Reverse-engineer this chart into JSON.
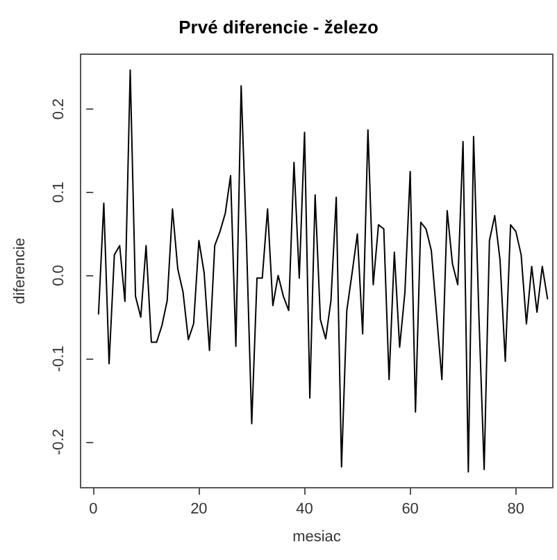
{
  "chart_data": {
    "type": "line",
    "title": "Prvé diferencie - železo",
    "xlabel": "mesiac",
    "ylabel": "diferencie",
    "x": [
      1,
      2,
      3,
      4,
      5,
      6,
      7,
      8,
      9,
      10,
      11,
      12,
      13,
      14,
      15,
      16,
      17,
      18,
      19,
      20,
      21,
      22,
      23,
      24,
      25,
      26,
      27,
      28,
      29,
      30,
      31,
      32,
      33,
      34,
      35,
      36,
      37,
      38,
      39,
      40,
      41,
      42,
      43,
      44,
      45,
      46,
      47,
      48,
      49,
      50,
      51,
      52,
      53,
      54,
      55,
      56,
      57,
      58,
      59,
      60,
      61,
      62,
      63,
      64,
      65,
      66,
      67,
      68,
      69,
      70,
      71,
      72,
      73,
      74,
      75,
      76,
      77,
      78,
      79,
      80,
      81,
      82,
      83,
      84,
      85,
      86
    ],
    "series": [
      {
        "color": "#000000",
        "values": [
          -0.046,
          0.087,
          -0.106,
          0.025,
          0.036,
          -0.031,
          0.247,
          -0.025,
          -0.05,
          0.036,
          -0.08,
          -0.08,
          -0.06,
          -0.03,
          0.08,
          0.008,
          -0.02,
          -0.077,
          -0.058,
          0.042,
          0.003,
          -0.09,
          0.036,
          0.053,
          0.075,
          0.12,
          -0.085,
          0.228,
          0.042,
          -0.178,
          -0.003,
          -0.003,
          0.08,
          -0.036,
          0,
          -0.025,
          -0.042,
          0.136,
          -0.003,
          0.172,
          -0.147,
          0.097,
          -0.053,
          -0.076,
          -0.03,
          0.094,
          -0.23,
          -0.042,
          0.003,
          0.05,
          -0.07,
          0.175,
          -0.011,
          0.061,
          0.056,
          -0.125,
          0.028,
          -0.086,
          -0.02,
          0.125,
          -0.164,
          0.064,
          0.056,
          0.03,
          -0.047,
          -0.125,
          0.078,
          0.014,
          -0.011,
          0.161,
          -0.236,
          0.167,
          -0.047,
          -0.233,
          0.042,
          0.072,
          0.019,
          -0.103,
          0.061,
          0.053,
          0.025,
          -0.058,
          0.011,
          -0.044,
          0.011,
          -0.028
        ]
      }
    ],
    "xlim": [
      -2.4,
      87
    ],
    "xticks": [
      0,
      20,
      40,
      60,
      80
    ],
    "ylim": [
      -0.255,
      0.266
    ],
    "yticks": [
      -0.2,
      -0.1,
      {
        "value": 0,
        "label": "0.0"
      },
      0.1,
      0.2
    ],
    "grid": false,
    "marker": "none",
    "line_style": "solid"
  }
}
